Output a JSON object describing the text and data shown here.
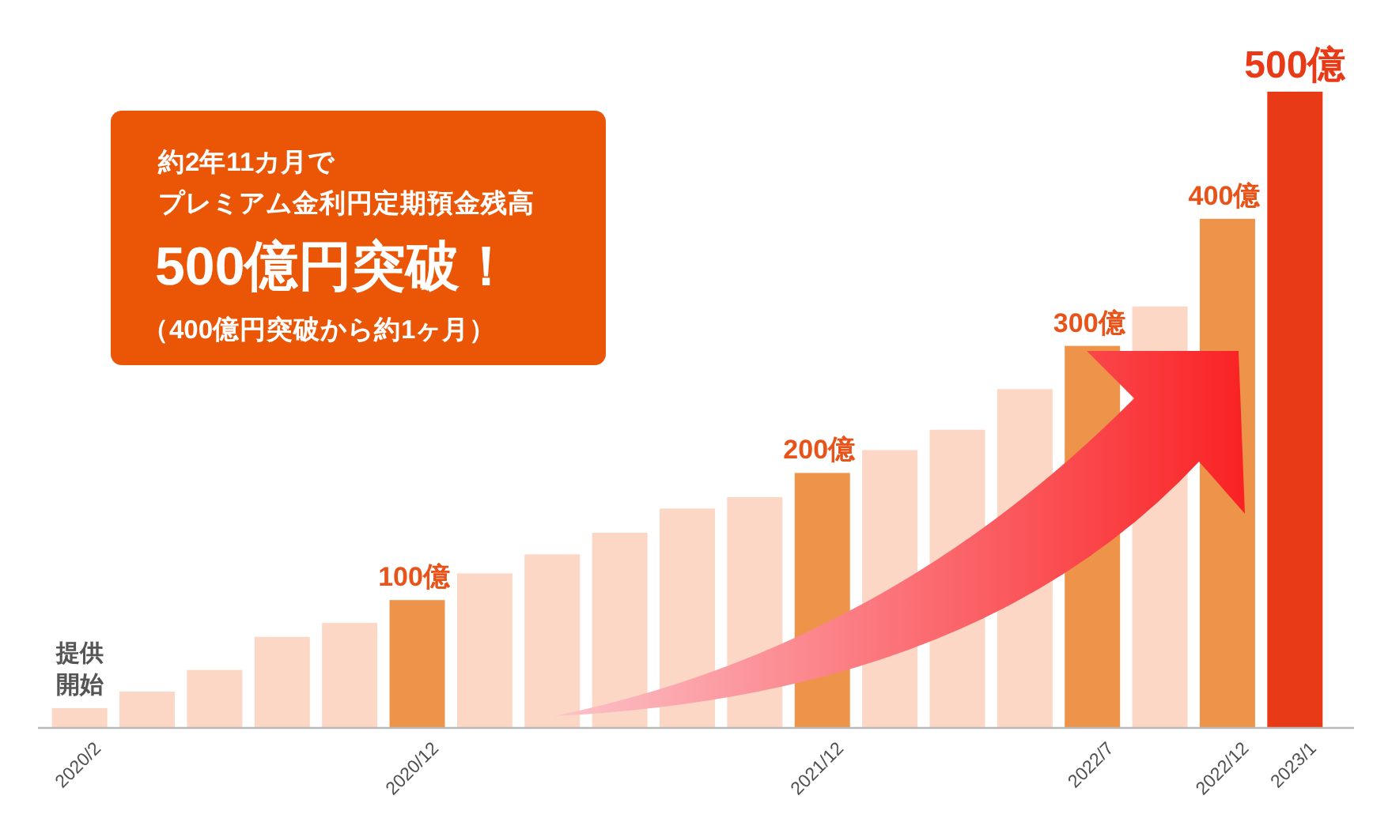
{
  "chart_data": {
    "type": "bar",
    "title": "500億円突破！",
    "subtitle": "（400億円突破から約1ヶ月）",
    "annotations": [
      "約2年11カ月で",
      "プレミアム金利円定期預金残高",
      {
        "text": "提供開始",
        "x": "2020/2",
        "y": 15
      }
    ],
    "categories": [
      "2020/2",
      null,
      null,
      null,
      null,
      "2020/12",
      null,
      null,
      null,
      null,
      null,
      "2021/12",
      null,
      null,
      null,
      "2022/7",
      null,
      "2022/12",
      "2023/1"
    ],
    "values": [
      15,
      28,
      45,
      71,
      82,
      100,
      121,
      136,
      153,
      172,
      181,
      200,
      218,
      234,
      266,
      300,
      331,
      400,
      500
    ],
    "colors": [
      "#fdd7c6",
      "#fdd7c6",
      "#fdd7c6",
      "#fdd7c6",
      "#fdd7c6",
      "#ee944a",
      "#fdd7c6",
      "#fdd7c6",
      "#fdd7c6",
      "#fdd7c6",
      "#fdd7c6",
      "#ee944a",
      "#fdd7c6",
      "#fdd7c6",
      "#fdd7c6",
      "#ee944a",
      "#fdd7c6",
      "#ee944a",
      "#e93a18"
    ],
    "value_labels": [
      null,
      null,
      null,
      null,
      null,
      "100億",
      null,
      null,
      null,
      null,
      null,
      "200億",
      null,
      null,
      null,
      "300億",
      null,
      "400億",
      "500億"
    ]
  }
}
